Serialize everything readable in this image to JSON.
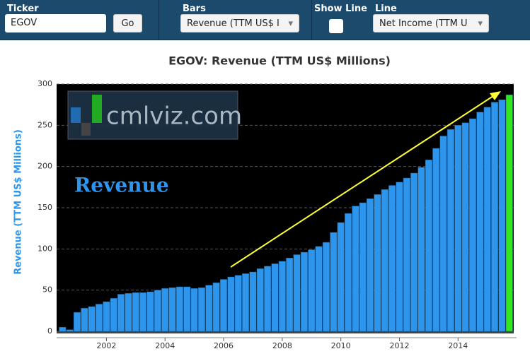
{
  "toolbar": {
    "ticker_label": "Ticker",
    "ticker_value": "EGOV",
    "go": "Go",
    "bars_label": "Bars",
    "bars_value": "Revenue (TTM US$ I",
    "show_line_label": "Show Line",
    "line_label": "Line",
    "line_value": "Net Income (TTM U"
  },
  "chart_data": {
    "type": "bar",
    "title": "EGOV: Revenue (TTM US$ Millions)",
    "y_label": "Revenue (TTM US$ Millions)",
    "annotations": [
      "cmlviz.com",
      "Revenue"
    ],
    "x": [
      2000.5,
      2000.75,
      2001,
      2001.25,
      2001.5,
      2001.75,
      2002,
      2002.25,
      2002.5,
      2002.75,
      2003,
      2003.25,
      2003.5,
      2003.75,
      2004,
      2004.25,
      2004.5,
      2004.75,
      2005,
      2005.25,
      2005.5,
      2005.75,
      2006,
      2006.25,
      2006.5,
      2006.75,
      2007,
      2007.25,
      2007.5,
      2007.75,
      2008,
      2008.25,
      2008.5,
      2008.75,
      2009,
      2009.25,
      2009.5,
      2009.75,
      2010,
      2010.25,
      2010.5,
      2010.75,
      2011,
      2011.25,
      2011.5,
      2011.75,
      2012,
      2012.25,
      2012.5,
      2012.75,
      2013,
      2013.25,
      2013.5,
      2013.75,
      2014,
      2014.25,
      2014.5,
      2014.75,
      2015,
      2015.25,
      2015.5,
      2015.75
    ],
    "values": [
      5,
      2,
      23,
      28,
      30,
      33,
      36,
      40,
      45,
      46,
      47,
      47,
      48,
      50,
      52,
      53,
      54,
      54,
      52,
      53,
      56,
      59,
      63,
      66,
      68,
      70,
      72,
      76,
      79,
      82,
      85,
      89,
      93,
      96,
      99,
      103,
      108,
      120,
      132,
      143,
      152,
      156,
      161,
      166,
      172,
      177,
      181,
      186,
      192,
      199,
      208,
      222,
      237,
      245,
      250,
      253,
      258,
      266,
      272,
      278,
      281,
      287
    ],
    "color": "#2d96ec",
    "highlight": {
      "index": 61,
      "color": "#33e81a"
    },
    "xlim": [
      2000.3,
      2015.9
    ],
    "xticks": [
      2002,
      2004,
      2006,
      2008,
      2010,
      2012,
      2014
    ],
    "ylim": [
      0,
      300
    ],
    "yticks": [
      0,
      50,
      100,
      150,
      200,
      250,
      300
    ],
    "grid": true
  }
}
